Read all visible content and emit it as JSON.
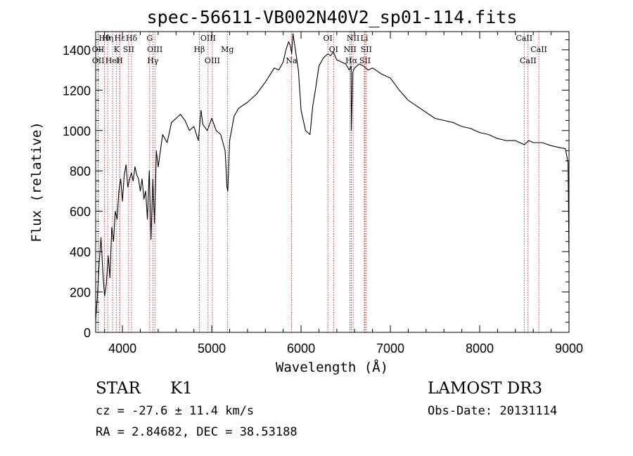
{
  "chart_data": {
    "type": "line",
    "title": "spec-56611-VB002N40V2_sp01-114.fits",
    "xlabel": "Wavelength (Å)",
    "ylabel": "Flux (relative)",
    "xlim": [
      3700,
      9000
    ],
    "ylim": [
      0,
      1490
    ],
    "xticks": [
      4000,
      5000,
      6000,
      7000,
      8000,
      9000
    ],
    "yticks": [
      0,
      200,
      400,
      600,
      800,
      1000,
      1200,
      1400
    ],
    "series": [
      {
        "name": "spectrum",
        "x": [
          3700,
          3720,
          3740,
          3760,
          3780,
          3800,
          3820,
          3840,
          3860,
          3880,
          3900,
          3920,
          3940,
          3960,
          3980,
          4000,
          4020,
          4040,
          4060,
          4080,
          4100,
          4120,
          4140,
          4160,
          4180,
          4200,
          4220,
          4240,
          4260,
          4280,
          4300,
          4320,
          4340,
          4360,
          4380,
          4400,
          4450,
          4500,
          4550,
          4600,
          4650,
          4700,
          4750,
          4800,
          4850,
          4880,
          4900,
          4950,
          5000,
          5050,
          5100,
          5150,
          5170,
          5180,
          5200,
          5250,
          5300,
          5400,
          5500,
          5600,
          5700,
          5750,
          5800,
          5830,
          5860,
          5880,
          5895,
          5910,
          5940,
          5970,
          6000,
          6050,
          6100,
          6130,
          6160,
          6200,
          6250,
          6300,
          6330,
          6360,
          6400,
          6450,
          6500,
          6540,
          6560,
          6563,
          6580,
          6600,
          6650,
          6700,
          6750,
          6800,
          6900,
          7000,
          7100,
          7200,
          7300,
          7400,
          7500,
          7600,
          7700,
          7800,
          7900,
          8000,
          8100,
          8200,
          8300,
          8400,
          8500,
          8550,
          8600,
          8700,
          8800,
          8900,
          8960,
          8990,
          9000
        ],
        "values": [
          60,
          180,
          350,
          470,
          300,
          180,
          240,
          380,
          270,
          520,
          450,
          600,
          560,
          700,
          760,
          650,
          780,
          830,
          720,
          760,
          790,
          750,
          820,
          780,
          760,
          700,
          760,
          660,
          700,
          560,
          800,
          460,
          760,
          540,
          900,
          820,
          980,
          940,
          1040,
          1060,
          1080,
          1050,
          1000,
          1020,
          950,
          1100,
          1030,
          1000,
          1060,
          1000,
          980,
          900,
          720,
          700,
          950,
          1070,
          1110,
          1140,
          1180,
          1240,
          1310,
          1300,
          1340,
          1400,
          1440,
          1420,
          1380,
          1480,
          1390,
          1300,
          1100,
          1000,
          980,
          1120,
          1200,
          1320,
          1360,
          1380,
          1370,
          1390,
          1350,
          1340,
          1330,
          1300,
          1320,
          1000,
          1290,
          1310,
          1330,
          1320,
          1300,
          1310,
          1280,
          1260,
          1200,
          1150,
          1120,
          1090,
          1060,
          1050,
          1040,
          1020,
          1010,
          990,
          980,
          960,
          950,
          950,
          930,
          950,
          940,
          940,
          925,
          915,
          910,
          840,
          370
        ]
      }
    ],
    "line_markers": [
      {
        "label": "Hθ",
        "wavelength": 3798
      },
      {
        "label": "OII",
        "wavelength": 3727
      },
      {
        "label": "OII",
        "wavelength": 3729
      },
      {
        "label": "Hε",
        "wavelength": 3970
      },
      {
        "label": "K",
        "wavelength": 3934
      },
      {
        "label": "HeI",
        "wavelength": 3889
      },
      {
        "label": "Hη",
        "wavelength": 3835
      },
      {
        "label": "SII",
        "wavelength": 4069
      },
      {
        "label": "H",
        "wavelength": 3968
      },
      {
        "label": "Hδ",
        "wavelength": 4102
      },
      {
        "label": "OIII",
        "wavelength": 4363
      },
      {
        "label": "Hγ",
        "wavelength": 4341
      },
      {
        "label": "G",
        "wavelength": 4305
      },
      {
        "label": "Hβ",
        "wavelength": 4861
      },
      {
        "label": "OIII",
        "wavelength": 5007
      },
      {
        "label": "OIII",
        "wavelength": 4959
      },
      {
        "label": "Mg",
        "wavelength": 5175
      },
      {
        "label": "Na",
        "wavelength": 5893
      },
      {
        "label": "OI",
        "wavelength": 6300
      },
      {
        "label": "OI",
        "wavelength": 6364
      },
      {
        "label": "Hα",
        "wavelength": 6563
      },
      {
        "label": "NII",
        "wavelength": 6583
      },
      {
        "label": "NII",
        "wavelength": 6548
      },
      {
        "label": "SII",
        "wavelength": 6716
      },
      {
        "label": "Li",
        "wavelength": 6708
      },
      {
        "label": "SII",
        "wavelength": 6731
      },
      {
        "label": "CaII",
        "wavelength": 8542
      },
      {
        "label": "CaII",
        "wavelength": 8498
      },
      {
        "label": "CaII",
        "wavelength": 8662
      }
    ]
  },
  "info": {
    "object_class": "STAR",
    "subclass": "K1",
    "survey": "LAMOST DR3",
    "cz": "cz = -27.6 ± 11.4 km/s",
    "obs_date": "Obs-Date: 20131114",
    "coords": "RA =   2.84682, DEC =  38.53188"
  },
  "colors": {
    "line": "#000000",
    "marker": "#cc0000",
    "background": "#ffffff"
  }
}
